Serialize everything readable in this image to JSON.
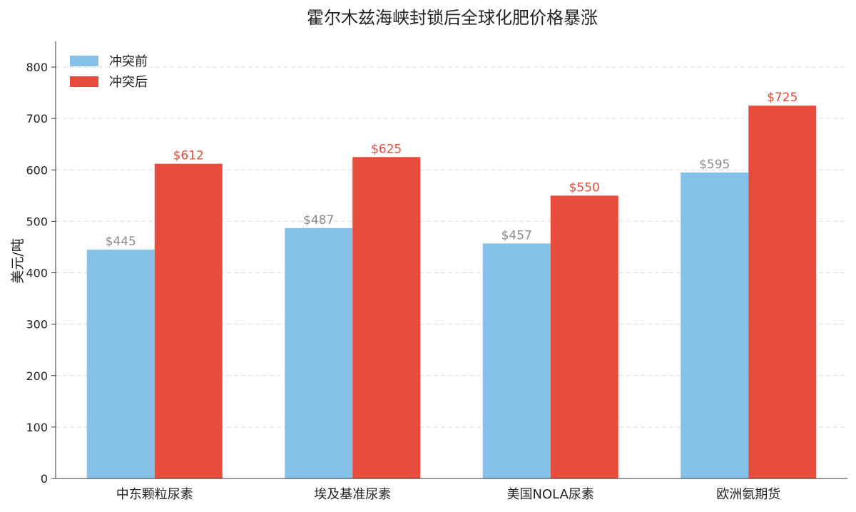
{
  "chart_data": {
    "type": "bar",
    "title": "霍尔木兹海峡封锁后全球化肥价格暴涨",
    "xlabel": "",
    "ylabel": "美元/吨",
    "categories": [
      "中东颗粒尿素",
      "埃及基准尿素",
      "美国NOLA尿素",
      "欧洲氨期货"
    ],
    "series": [
      {
        "name": "冲突前",
        "color": "#85c1e9",
        "label_color": "#8c8c8c",
        "values": [
          445,
          487,
          457,
          595
        ],
        "labels": [
          "$445",
          "$487",
          "$457",
          "$595"
        ]
      },
      {
        "name": "冲突后",
        "color": "#e74c3c",
        "label_color": "#e74c3c",
        "values": [
          612,
          625,
          550,
          725
        ],
        "labels": [
          "$612",
          "$625",
          "$550",
          "$725"
        ]
      }
    ],
    "ylim": [
      0,
      850
    ],
    "yticks": [
      0,
      100,
      200,
      300,
      400,
      500,
      600,
      700,
      800
    ],
    "ytick_labels": [
      "0",
      "100",
      "200",
      "300",
      "400",
      "500",
      "600",
      "700",
      "800"
    ],
    "grid": "y-dashed",
    "legend": "top-left"
  }
}
